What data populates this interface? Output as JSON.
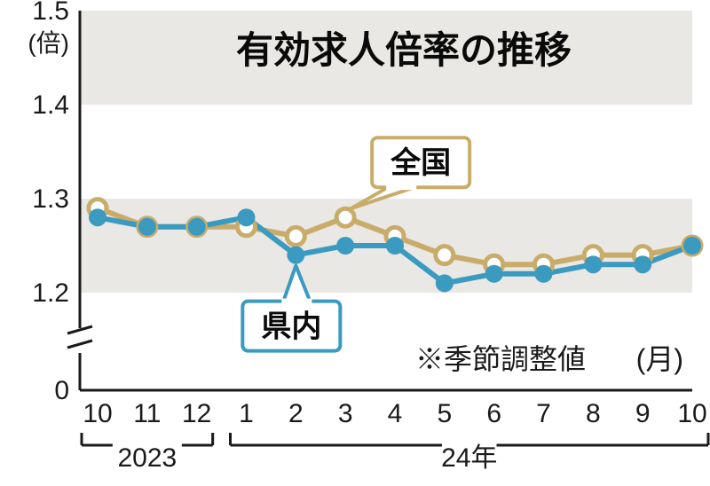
{
  "chart": {
    "type": "line",
    "title": "有効求人倍率の推移",
    "title_fontsize": 42,
    "y_unit_label": "(倍)",
    "y_unit_fontsize": 28,
    "note": "※季節調整値",
    "x_unit_label": "(月)",
    "note_fontsize": 32,
    "background_color": "#ffffff",
    "band_color": "#e9e8e4",
    "axis_color": "#1a1a1a",
    "y_ticks": [
      "1.5",
      "1.4",
      "1.3",
      "1.2",
      "0"
    ],
    "y_tick_values": [
      1.5,
      1.4,
      1.3,
      1.2,
      0
    ],
    "y_break_between": [
      1.2,
      0
    ],
    "ylim_top": 1.5,
    "ylim_visual_bottom": 1.15,
    "x_labels": [
      "10",
      "11",
      "12",
      "1",
      "2",
      "3",
      "4",
      "5",
      "6",
      "7",
      "8",
      "9",
      "10"
    ],
    "x_year_groups": [
      {
        "label": "2023",
        "start_idx": 0,
        "end_idx": 2
      },
      {
        "label": "24年",
        "start_idx": 3,
        "end_idx": 12
      }
    ],
    "x_fontsize": 30,
    "year_fontsize": 30,
    "series": [
      {
        "name": "全国",
        "callout_label": "全国",
        "data": [
          1.29,
          1.27,
          1.27,
          1.27,
          1.26,
          1.28,
          1.26,
          1.24,
          1.23,
          1.23,
          1.24,
          1.24,
          1.25
        ],
        "line_color": "#c9ac6a",
        "line_width": 6,
        "marker": "circle-open",
        "marker_size": 10,
        "marker_fill": "#ffffff",
        "marker_stroke": "#c9ac6a",
        "marker_stroke_width": 5,
        "callout_anchor_idx": 5
      },
      {
        "name": "県内",
        "callout_label": "県内",
        "data": [
          1.28,
          1.27,
          1.27,
          1.28,
          1.24,
          1.25,
          1.25,
          1.21,
          1.22,
          1.22,
          1.23,
          1.23,
          1.25
        ],
        "line_color": "#3a9ac0",
        "line_width": 6,
        "marker": "circle",
        "marker_size": 10,
        "marker_fill": "#3a9ac0",
        "marker_stroke": "#3a9ac0",
        "marker_stroke_width": 0,
        "callout_anchor_idx": 4
      }
    ],
    "callout_box_stroke_national": "#c9ac6a",
    "callout_box_stroke_prefecture": "#3a9ac0",
    "callout_fontsize": 34
  }
}
